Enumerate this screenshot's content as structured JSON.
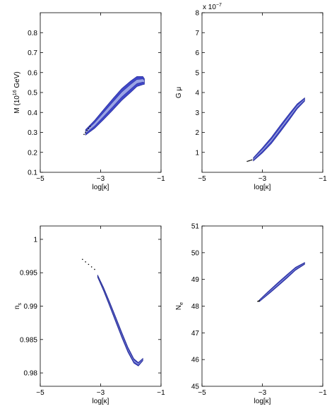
{
  "figure": {
    "panels_layout": "2x2"
  },
  "colors": {
    "outer_contour": "#3f46c8",
    "inner_contour": "#9aa3e6",
    "outline": "#1e2490",
    "tail_dots": "#000000"
  },
  "chart_data": [
    {
      "type": "area",
      "panel": "top-left",
      "xlabel": "log[κ]",
      "ylabel": "M (10",
      "ylabel_sup": "16",
      "ylabel_tail": " GeV)",
      "exponent_label": "",
      "xlim": [
        -5,
        -1
      ],
      "ylim": [
        0.1,
        0.9
      ],
      "xticks": [
        -5,
        -3,
        -1
      ],
      "xtick_labels": [
        "−5",
        "−3",
        "−1"
      ],
      "yticks": [
        0.1,
        0.2,
        0.3,
        0.4,
        0.5,
        0.6,
        0.7,
        0.8
      ],
      "ytick_labels": [
        "0.1",
        "0.2",
        "0.3",
        "0.4",
        "0.5",
        "0.6",
        "0.7",
        "0.8"
      ],
      "band": {
        "x": [
          -3.5,
          -3.2,
          -2.9,
          -2.6,
          -2.3,
          -2.0,
          -1.8,
          -1.6,
          -1.55
        ],
        "y": [
          0.3,
          0.34,
          0.39,
          0.44,
          0.49,
          0.53,
          0.555,
          0.56,
          0.555
        ],
        "outer_half_width": 0.03,
        "inner_half_width": 0.012
      },
      "tail": {
        "x": [
          -3.55,
          -3.35
        ],
        "y": [
          0.29,
          0.33
        ]
      }
    },
    {
      "type": "area",
      "panel": "top-right",
      "xlabel": "log[κ]",
      "ylabel": "G μ",
      "ylabel_sup": "",
      "ylabel_tail": "",
      "exponent_label": "x 10",
      "exponent_sup": "−7",
      "xlim": [
        -5,
        -1
      ],
      "ylim": [
        0,
        8
      ],
      "xticks": [
        -5,
        -3,
        -1
      ],
      "xtick_labels": [
        "−5",
        "−3",
        "−1"
      ],
      "yticks": [
        1,
        2,
        3,
        4,
        5,
        6,
        7,
        8
      ],
      "ytick_labels": [
        "1",
        "2",
        "3",
        "4",
        "5",
        "6",
        "7",
        "8"
      ],
      "band": {
        "x": [
          -3.3,
          -3.0,
          -2.7,
          -2.4,
          -2.1,
          -1.85,
          -1.6
        ],
        "y": [
          0.65,
          1.1,
          1.6,
          2.2,
          2.8,
          3.3,
          3.65
        ],
        "outer_half_width": 0.17,
        "inner_half_width": 0.06
      },
      "tail": {
        "x": [
          -3.5,
          -3.35
        ],
        "y": [
          0.55,
          0.62
        ]
      }
    },
    {
      "type": "area",
      "panel": "bottom-left",
      "xlabel": "log[κ]",
      "ylabel": "n",
      "ylabel_sub": "s",
      "exponent_label": "",
      "xlim": [
        -5,
        -1
      ],
      "ylim": [
        0.978,
        1.002
      ],
      "xticks": [
        -5,
        -3,
        -1
      ],
      "xtick_labels": [
        "−5",
        "−3",
        "−1"
      ],
      "yticks": [
        0.98,
        0.985,
        0.99,
        0.995,
        1.0
      ],
      "ytick_labels": [
        "0.98",
        "0.985",
        "0.99",
        "0.995",
        "1"
      ],
      "band": {
        "x": [
          -3.1,
          -2.9,
          -2.7,
          -2.5,
          -2.3,
          -2.1,
          -1.9,
          -1.75,
          -1.6
        ],
        "y": [
          0.9945,
          0.9925,
          0.9903,
          0.988,
          0.9857,
          0.9835,
          0.9818,
          0.9813,
          0.982
        ],
        "outer_half_width": 0.0004,
        "inner_half_width": 0.00015
      },
      "tail": {
        "x": [
          -3.6,
          -3.2
        ],
        "y": [
          0.997,
          0.9955
        ]
      }
    },
    {
      "type": "area",
      "panel": "bottom-right",
      "xlabel": "log[κ]",
      "ylabel": "N",
      "ylabel_sub": "e",
      "exponent_label": "",
      "xlim": [
        -5,
        -1
      ],
      "ylim": [
        45,
        51
      ],
      "xticks": [
        -5,
        -3,
        -1
      ],
      "xtick_labels": [
        "−5",
        "−3",
        "−1"
      ],
      "yticks": [
        45,
        46,
        47,
        48,
        49,
        50,
        51
      ],
      "ytick_labels": [
        "45",
        "46",
        "47",
        "48",
        "49",
        "50",
        "51"
      ],
      "band": {
        "x": [
          -3.1,
          -2.8,
          -2.5,
          -2.2,
          -1.9,
          -1.6
        ],
        "y": [
          48.2,
          48.5,
          48.8,
          49.1,
          49.4,
          49.6
        ],
        "outer_half_width": 0.07,
        "inner_half_width": 0.025
      },
      "tail": {
        "x": [
          -3.15,
          -3.1
        ],
        "y": [
          48.18,
          48.2
        ]
      }
    }
  ]
}
